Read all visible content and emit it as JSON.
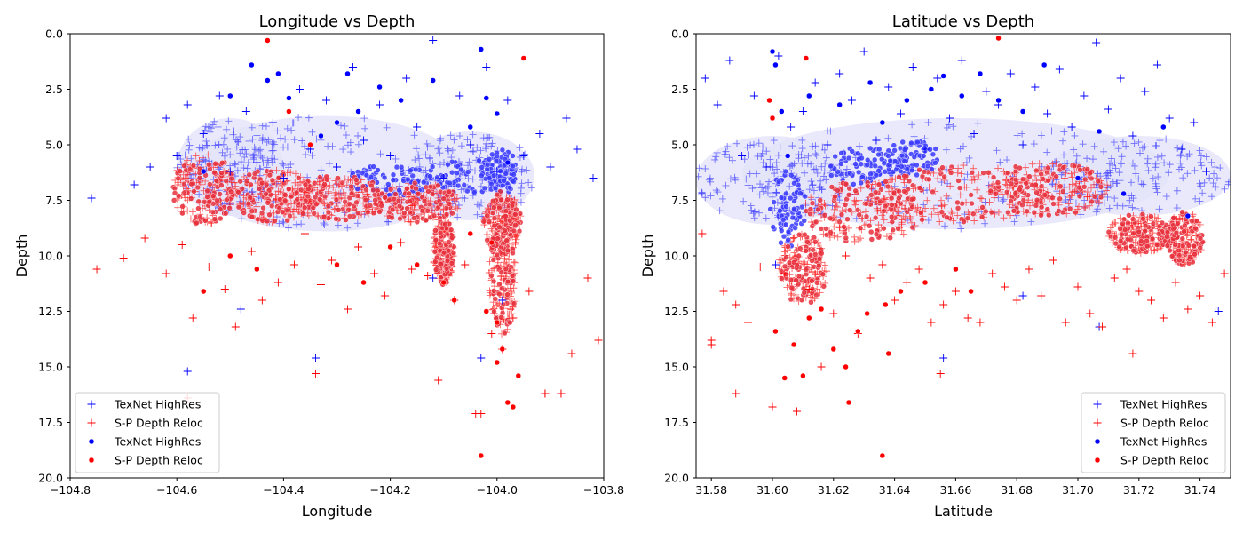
{
  "chart_data": [
    {
      "type": "scatter",
      "title": "Longitude vs Depth",
      "xlabel": "Longitude",
      "ylabel": "Depth",
      "xlim": [
        -104.8,
        -103.8
      ],
      "ylim": [
        20.0,
        0.0
      ],
      "y_inverted": true,
      "x_ticks": [
        "−104.8",
        "−104.6",
        "−104.4",
        "−104.2",
        "−104.0",
        "−103.8"
      ],
      "y_ticks": [
        "0.0",
        "2.5",
        "5.0",
        "7.5",
        "10.0",
        "12.5",
        "15.0",
        "17.5",
        "20.0"
      ],
      "legend_position": "lower-left",
      "legend": [
        {
          "label": "TexNet HighRes",
          "marker": "plus",
          "color": "#0000ff"
        },
        {
          "label": "S-P Depth Reloc",
          "marker": "plus",
          "color": "#ff0000"
        },
        {
          "label": "TexNet HighRes",
          "marker": "dot",
          "color": "#0000ff"
        },
        {
          "label": "S-P Depth Reloc",
          "marker": "dot",
          "color": "#ff0000"
        }
      ],
      "series": [
        {
          "name": "TexNet HighRes",
          "marker": "plus",
          "color": "#0000ff",
          "x": [
            -104.76,
            -104.68,
            -104.65,
            -104.62,
            -104.6,
            -104.58,
            -104.55,
            -104.52,
            -104.5,
            -104.47,
            -104.45,
            -104.42,
            -104.4,
            -104.37,
            -104.35,
            -104.32,
            -104.3,
            -104.27,
            -104.25,
            -104.22,
            -104.2,
            -104.17,
            -104.15,
            -104.12,
            -104.1,
            -104.07,
            -104.05,
            -104.02,
            -104.0,
            -103.98,
            -103.95,
            -103.92,
            -103.9,
            -103.87,
            -103.85,
            -103.82,
            -104.58,
            -104.34,
            -104.12,
            -104.03,
            -103.99,
            -104.48
          ],
          "y": [
            7.4,
            6.8,
            6.0,
            3.8,
            5.5,
            3.2,
            4.5,
            2.8,
            6.2,
            3.5,
            5.8,
            4.0,
            6.5,
            2.5,
            5.2,
            3.0,
            6.0,
            1.5,
            4.8,
            3.2,
            5.5,
            2.0,
            4.2,
            0.3,
            6.5,
            2.8,
            5.0,
            1.5,
            6.2,
            3.0,
            5.5,
            4.5,
            6.0,
            3.8,
            5.2,
            6.5,
            15.2,
            14.6,
            11.0,
            14.6,
            12.0,
            12.4
          ]
        },
        {
          "name": "S-P Depth Reloc",
          "marker": "plus",
          "color": "#ff0000",
          "x": [
            -104.75,
            -104.7,
            -104.66,
            -104.62,
            -104.59,
            -104.57,
            -104.54,
            -104.51,
            -104.49,
            -104.46,
            -104.44,
            -104.41,
            -104.38,
            -104.36,
            -104.33,
            -104.31,
            -104.28,
            -104.26,
            -104.23,
            -104.21,
            -104.18,
            -104.16,
            -104.13,
            -104.11,
            -104.08,
            -104.06,
            -104.04,
            -104.01,
            -103.99,
            -103.97,
            -103.94,
            -103.91,
            -103.88,
            -103.86,
            -103.83,
            -103.81,
            -104.34,
            -104.03,
            -103.91,
            -103.88,
            -104.58
          ],
          "y": [
            10.6,
            10.1,
            9.2,
            10.8,
            9.5,
            12.8,
            10.5,
            11.5,
            13.2,
            9.8,
            12.0,
            11.2,
            10.4,
            9.0,
            11.3,
            10.2,
            12.4,
            9.6,
            10.8,
            11.8,
            9.4,
            10.6,
            10.9,
            15.6,
            12.0,
            10.4,
            17.1,
            13.5,
            14.2,
            12.8,
            11.6,
            16.2,
            16.2,
            14.4,
            11.0,
            13.8,
            15.3,
            17.1,
            16.2,
            16.2,
            16.4
          ]
        },
        {
          "name": "TexNet HighRes",
          "marker": "dot",
          "color": "#0000ff",
          "x": [
            -104.46,
            -104.43,
            -104.41,
            -104.39,
            -104.33,
            -104.28,
            -104.26,
            -104.22,
            -104.12,
            -104.05,
            -104.03,
            -104.02,
            -104.0,
            -103.98,
            -104.5,
            -104.55,
            -104.3,
            -104.18
          ],
          "y": [
            1.4,
            2.1,
            1.8,
            2.9,
            4.6,
            1.8,
            3.5,
            2.4,
            2.1,
            4.2,
            0.7,
            2.9,
            3.6,
            5.8,
            2.8,
            6.2,
            4.0,
            3.0
          ]
        },
        {
          "name": "S-P Depth Reloc",
          "marker": "dot",
          "color": "#ff0000",
          "x": [
            -104.43,
            -104.39,
            -104.35,
            -104.5,
            -104.55,
            -104.45,
            -104.3,
            -104.25,
            -104.2,
            -104.15,
            -104.1,
            -104.08,
            -104.05,
            -104.03,
            -104.0,
            -103.99,
            -103.98,
            -103.97,
            -103.96,
            -104.02,
            -103.95,
            -104.0,
            -104.01
          ],
          "y": [
            0.3,
            3.5,
            5.0,
            10.0,
            11.6,
            10.6,
            10.4,
            11.2,
            9.6,
            10.4,
            11.2,
            12.0,
            9.0,
            19.0,
            13.0,
            14.2,
            16.6,
            16.8,
            15.4,
            12.5,
            1.1,
            14.8,
            9.4
          ]
        }
      ]
    },
    {
      "type": "scatter",
      "title": "Latitude vs Depth",
      "xlabel": "Latitude",
      "ylabel": "Depth",
      "xlim": [
        31.575,
        31.75
      ],
      "ylim": [
        20.0,
        0.0
      ],
      "y_inverted": true,
      "x_ticks": [
        "31.58",
        "31.60",
        "31.62",
        "31.64",
        "31.66",
        "31.68",
        "31.70",
        "31.72",
        "31.74"
      ],
      "y_ticks": [
        "0.0",
        "2.5",
        "5.0",
        "7.5",
        "10.0",
        "12.5",
        "15.0",
        "17.5",
        "20.0"
      ],
      "legend_position": "lower-right",
      "legend": [
        {
          "label": "TexNet HighRes",
          "marker": "plus",
          "color": "#0000ff"
        },
        {
          "label": "S-P Depth Reloc",
          "marker": "plus",
          "color": "#ff0000"
        },
        {
          "label": "TexNet HighRes",
          "marker": "dot",
          "color": "#0000ff"
        },
        {
          "label": "S-P Depth Reloc",
          "marker": "dot",
          "color": "#ff0000"
        }
      ],
      "series": [
        {
          "name": "TexNet HighRes",
          "marker": "plus",
          "color": "#0000ff",
          "x": [
            31.578,
            31.582,
            31.586,
            31.59,
            31.594,
            31.598,
            31.602,
            31.606,
            31.61,
            31.614,
            31.618,
            31.622,
            31.626,
            31.63,
            31.634,
            31.638,
            31.642,
            31.646,
            31.65,
            31.654,
            31.658,
            31.662,
            31.666,
            31.67,
            31.674,
            31.678,
            31.682,
            31.686,
            31.69,
            31.694,
            31.698,
            31.702,
            31.706,
            31.71,
            31.714,
            31.718,
            31.722,
            31.726,
            31.73,
            31.734,
            31.738,
            31.742,
            31.746,
            31.656,
            31.707,
            31.682,
            31.601
          ],
          "y": [
            2.0,
            3.2,
            1.2,
            5.5,
            2.8,
            6.0,
            1.0,
            4.2,
            3.5,
            2.2,
            5.0,
            1.8,
            3.0,
            0.8,
            4.8,
            2.4,
            3.6,
            1.5,
            5.2,
            2.0,
            3.8,
            1.2,
            4.5,
            2.6,
            3.2,
            1.8,
            5.0,
            2.4,
            3.6,
            1.6,
            4.2,
            2.8,
            0.4,
            3.4,
            2.0,
            4.6,
            2.6,
            1.4,
            3.8,
            5.2,
            4.0,
            6.2,
            12.5,
            14.6,
            13.2,
            11.8,
            10.4
          ]
        },
        {
          "name": "S-P Depth Reloc",
          "marker": "plus",
          "color": "#ff0000",
          "x": [
            31.577,
            31.58,
            31.584,
            31.588,
            31.592,
            31.596,
            31.6,
            31.604,
            31.608,
            31.612,
            31.616,
            31.62,
            31.624,
            31.628,
            31.632,
            31.636,
            31.64,
            31.644,
            31.648,
            31.652,
            31.656,
            31.66,
            31.664,
            31.668,
            31.672,
            31.676,
            31.68,
            31.684,
            31.688,
            31.692,
            31.696,
            31.7,
            31.704,
            31.708,
            31.712,
            31.716,
            31.72,
            31.724,
            31.728,
            31.732,
            31.736,
            31.74,
            31.744,
            31.748,
            31.58,
            31.588,
            31.6,
            31.718,
            31.655
          ],
          "y": [
            9.0,
            13.8,
            11.6,
            12.2,
            13.0,
            10.5,
            16.8,
            10.8,
            17.0,
            11.5,
            15.0,
            12.6,
            10.0,
            13.5,
            11.0,
            10.4,
            12.0,
            11.2,
            10.6,
            13.0,
            12.2,
            11.6,
            12.8,
            13.0,
            10.8,
            11.4,
            12.0,
            10.6,
            11.8,
            10.2,
            13.0,
            11.4,
            12.6,
            13.2,
            11.0,
            10.6,
            11.6,
            12.0,
            12.8,
            11.2,
            12.4,
            11.8,
            13.0,
            10.8,
            14.0,
            16.2,
            16.8,
            14.4,
            15.3
          ]
        },
        {
          "name": "TexNet HighRes",
          "marker": "dot",
          "color": "#0000ff",
          "x": [
            31.6,
            31.601,
            31.603,
            31.605,
            31.612,
            31.622,
            31.632,
            31.636,
            31.644,
            31.652,
            31.656,
            31.662,
            31.668,
            31.674,
            31.682,
            31.689,
            31.7,
            31.707,
            31.715,
            31.728,
            31.736
          ],
          "y": [
            0.8,
            1.4,
            3.5,
            5.5,
            2.8,
            3.2,
            2.2,
            4.0,
            3.0,
            2.5,
            1.9,
            2.8,
            1.8,
            3.0,
            3.5,
            1.4,
            6.5,
            4.4,
            7.2,
            4.2,
            8.2
          ]
        },
        {
          "name": "S-P Depth Reloc",
          "marker": "dot",
          "color": "#ff0000",
          "x": [
            31.599,
            31.601,
            31.604,
            31.607,
            31.61,
            31.612,
            31.616,
            31.62,
            31.624,
            31.628,
            31.631,
            31.636,
            31.638,
            31.611,
            31.6,
            31.625,
            31.674,
            31.637,
            31.642,
            31.65,
            31.66,
            31.665
          ],
          "y": [
            3.0,
            13.4,
            15.5,
            14.0,
            15.4,
            12.8,
            12.4,
            14.2,
            15.0,
            13.4,
            12.6,
            19.0,
            14.4,
            1.1,
            3.8,
            16.6,
            0.2,
            12.2,
            11.6,
            11.2,
            10.6,
            11.6
          ]
        }
      ]
    }
  ]
}
